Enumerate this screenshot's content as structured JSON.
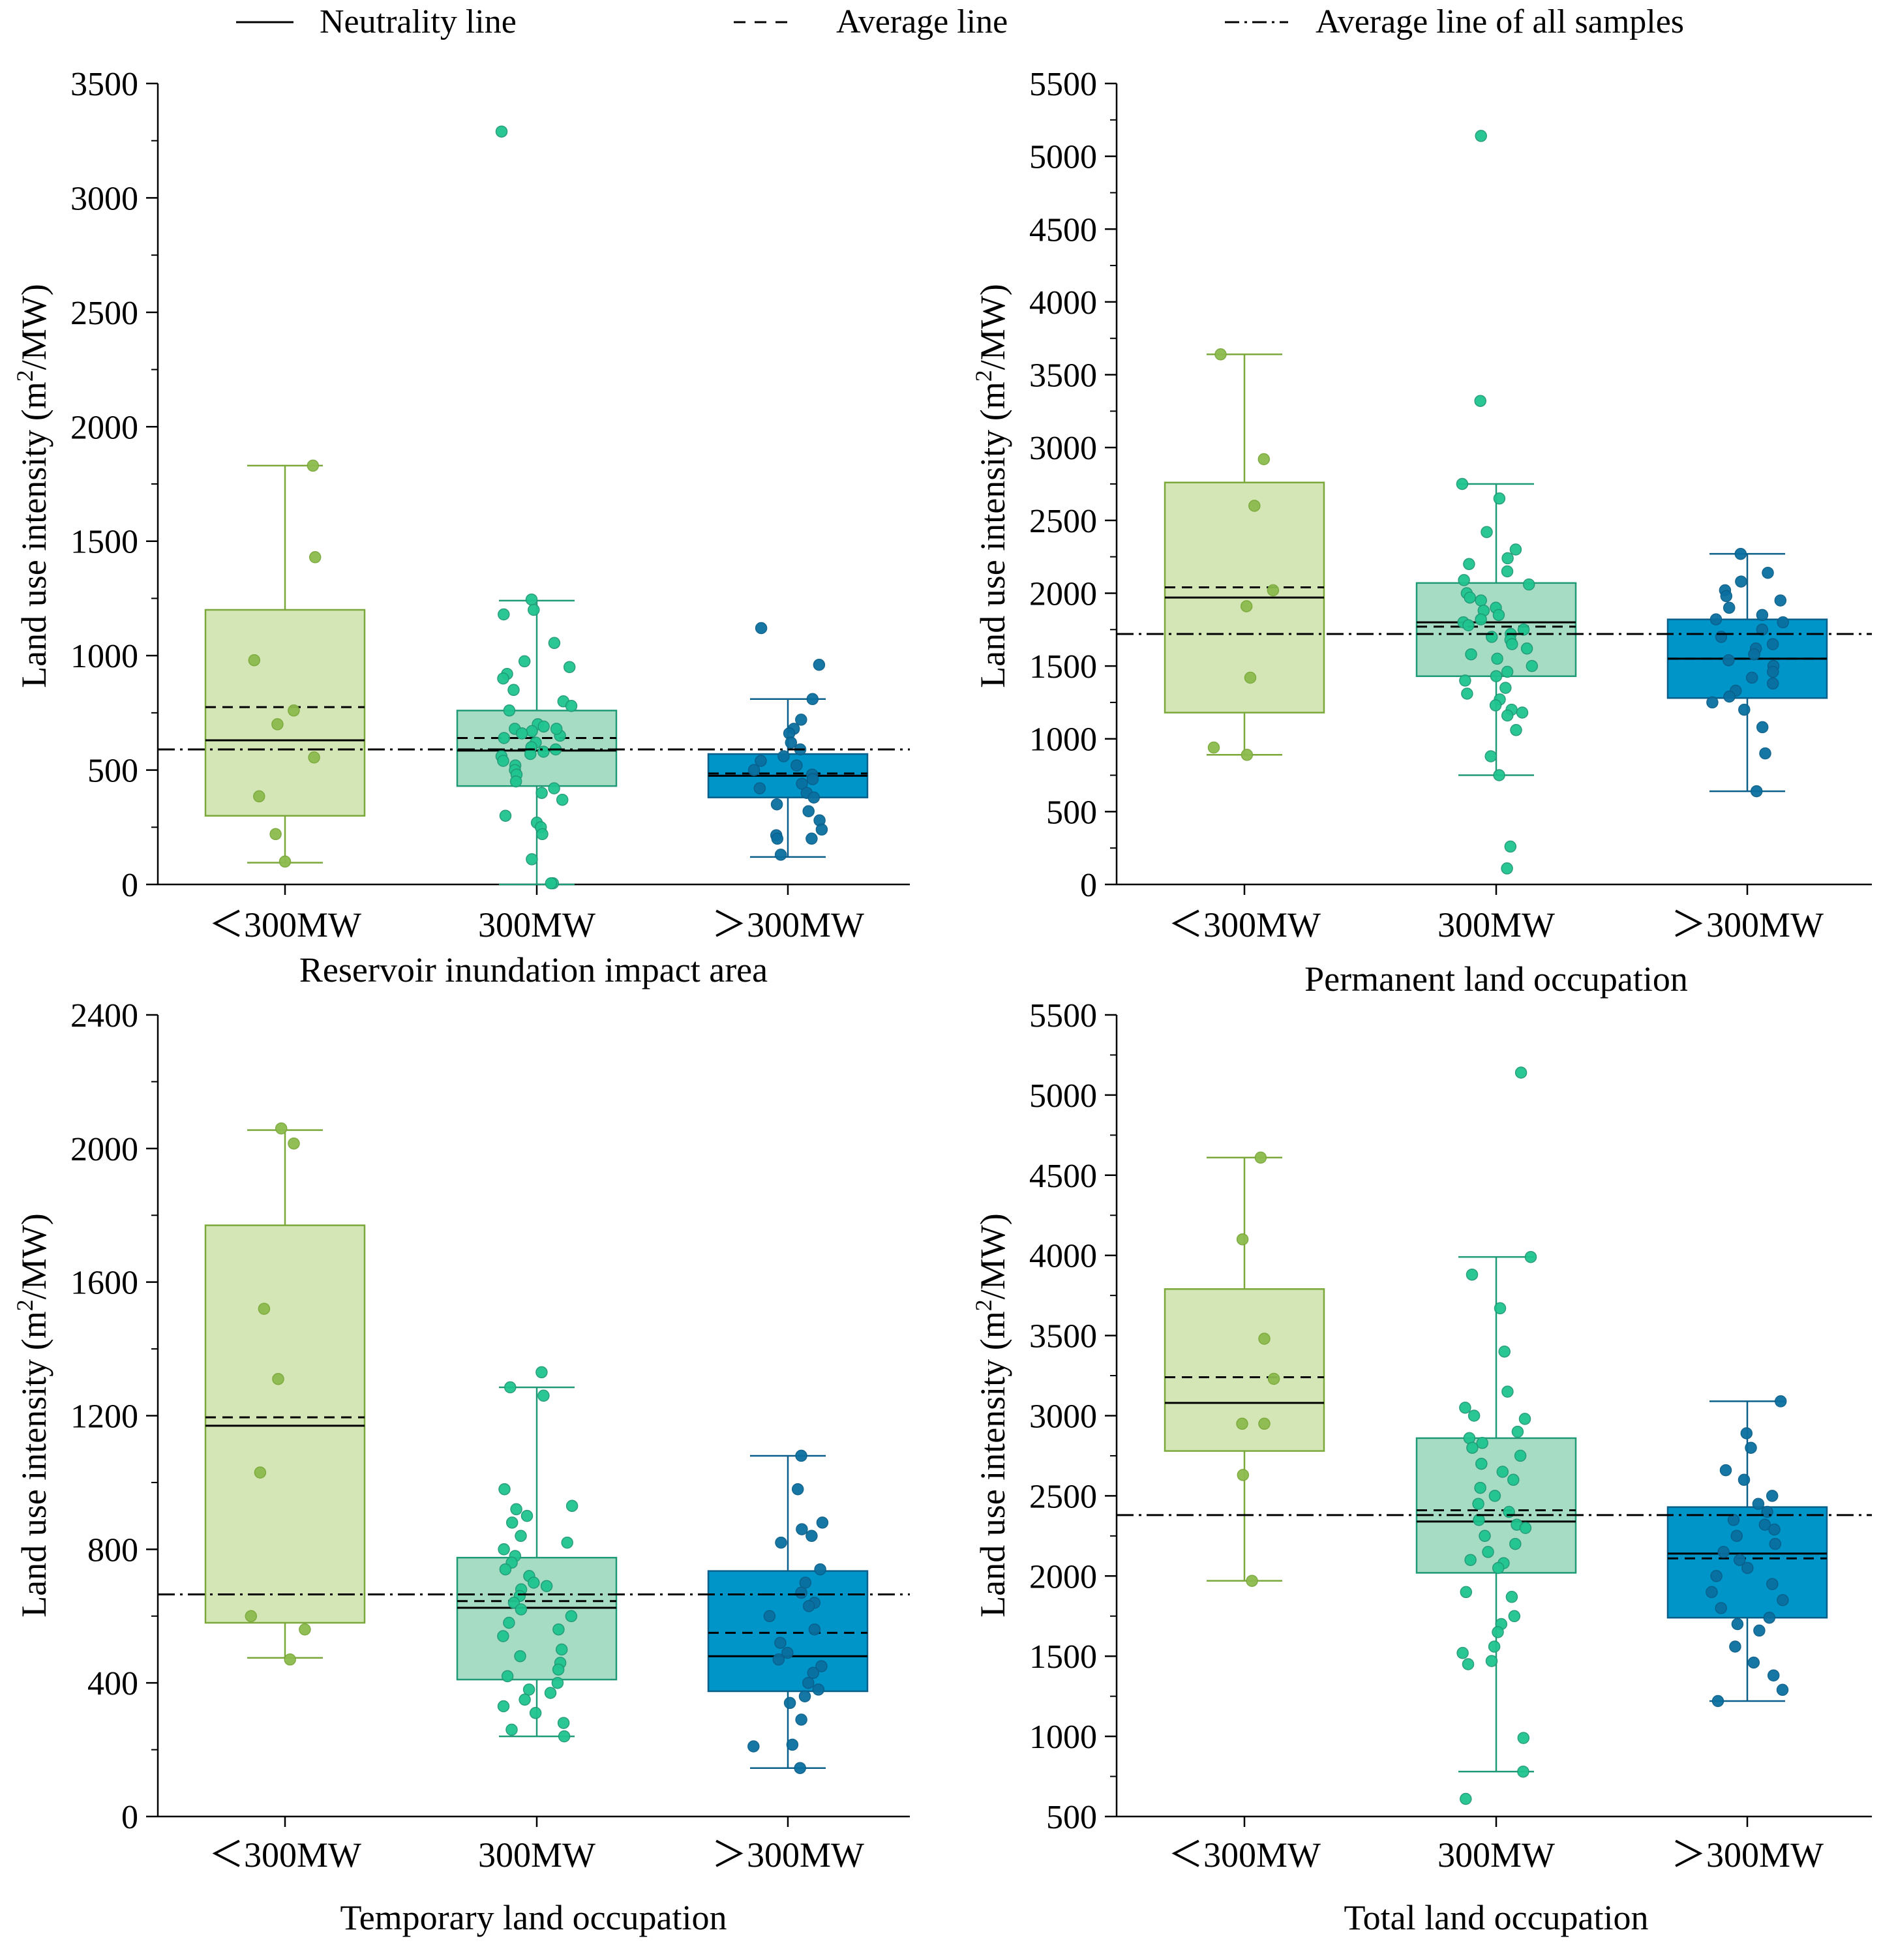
{
  "legend": {
    "neutrality": "Neutrality line",
    "average": "Average line",
    "average_all": "Average line of all samples"
  },
  "colors": {
    "small_fill": "#d4e6b5",
    "small_stroke": "#7aa83a",
    "small_point": "#8dbb4e",
    "mid_fill": "#a6dcc4",
    "mid_stroke": "#1f9a77",
    "mid_point": "#1fc48f",
    "large_fill": "#0095c8",
    "large_stroke": "#0a5f8a",
    "large_point": "#0a6fa0"
  },
  "chart_data": [
    {
      "type": "box",
      "title": "Reservoir inundation impact area",
      "ylabel_main": "Land use intensity (m",
      "ylabel_sup": "2",
      "ylabel_tail": "/MW)",
      "ylim": [
        0,
        3500
      ],
      "yticks": [
        0,
        500,
        1000,
        1500,
        2000,
        2500,
        3000,
        3500
      ],
      "overall_average": 590,
      "categories": [
        "<300MW",
        "300MW",
        ">300MW"
      ],
      "category_labels": [
        "＜300MW",
        "300MW",
        "＞300MW"
      ],
      "boxes": [
        {
          "q1": 300,
          "median": 630,
          "q3": 1200,
          "whisker_low": 95,
          "whisker_high": 1830,
          "mean": 775,
          "points": [
            1830,
            1430,
            980,
            700,
            555,
            385,
            220,
            100,
            760
          ]
        },
        {
          "q1": 430,
          "median": 585,
          "q3": 760,
          "whisker_low": 0,
          "whisker_high": 1240,
          "mean": 640,
          "points": [
            3290,
            1245,
            1200,
            1180,
            1055,
            975,
            950,
            920,
            900,
            850,
            800,
            780,
            760,
            700,
            690,
            680,
            670,
            660,
            650,
            640,
            620,
            600,
            590,
            580,
            570,
            560,
            540,
            520,
            500,
            480,
            450,
            420,
            400,
            370,
            300,
            270,
            250,
            220,
            110,
            5,
            5,
            680
          ]
        },
        {
          "q1": 380,
          "median": 475,
          "q3": 570,
          "whisker_low": 120,
          "whisker_high": 810,
          "mean": 485,
          "points": [
            1120,
            960,
            810,
            720,
            680,
            660,
            620,
            590,
            560,
            540,
            520,
            500,
            480,
            460,
            440,
            420,
            400,
            380,
            350,
            320,
            280,
            240,
            215,
            200,
            130,
            200
          ]
        }
      ]
    },
    {
      "type": "box",
      "title": "Permanent land occupation",
      "ylabel_main": "Land use intensity (m",
      "ylabel_sup": "2",
      "ylabel_tail": "/MW)",
      "ylim": [
        0,
        5500
      ],
      "yticks": [
        0,
        500,
        1000,
        1500,
        2000,
        2500,
        3000,
        3500,
        4000,
        4500,
        5000,
        5500
      ],
      "overall_average": 1720,
      "categories": [
        "<300MW",
        "300MW",
        ">300MW"
      ],
      "category_labels": [
        "＜300MW",
        "300MW",
        "＞300MW"
      ],
      "boxes": [
        {
          "q1": 1180,
          "median": 1970,
          "q3": 2760,
          "whisker_low": 890,
          "whisker_high": 3640,
          "mean": 2040,
          "points": [
            3640,
            2920,
            2600,
            2020,
            1910,
            1420,
            940,
            890
          ]
        },
        {
          "q1": 1430,
          "median": 1800,
          "q3": 2070,
          "whisker_low": 750,
          "whisker_high": 2750,
          "mean": 1770,
          "points": [
            5140,
            3320,
            2750,
            2650,
            2420,
            2300,
            2240,
            2200,
            2150,
            2090,
            2060,
            2000,
            1970,
            1950,
            1900,
            1880,
            1850,
            1820,
            1800,
            1780,
            1750,
            1720,
            1700,
            1680,
            1650,
            1620,
            1580,
            1550,
            1500,
            1460,
            1430,
            1400,
            1350,
            1310,
            1270,
            1230,
            1200,
            1180,
            1160,
            1060,
            880,
            750,
            260,
            110
          ]
        },
        {
          "q1": 1280,
          "median": 1550,
          "q3": 1820,
          "whisker_low": 640,
          "whisker_high": 2270,
          "mean": 1550,
          "points": [
            2270,
            2140,
            2080,
            2020,
            1980,
            1950,
            1900,
            1850,
            1820,
            1800,
            1750,
            1700,
            1650,
            1620,
            1580,
            1540,
            1500,
            1460,
            1420,
            1380,
            1330,
            1290,
            1250,
            1200,
            1080,
            900,
            640
          ]
        }
      ]
    },
    {
      "type": "box",
      "title": "Temporary land occupation",
      "ylabel_main": "Land use intensity (m",
      "ylabel_sup": "2",
      "ylabel_tail": "/MW)",
      "ylim": [
        0,
        2400
      ],
      "yticks": [
        0,
        400,
        800,
        1200,
        1600,
        2000,
        2400
      ],
      "overall_average": 665,
      "categories": [
        "<300MW",
        "300MW",
        ">300MW"
      ],
      "category_labels": [
        "＜300MW",
        "300MW",
        "＞300MW"
      ],
      "boxes": [
        {
          "q1": 580,
          "median": 1170,
          "q3": 1770,
          "whisker_low": 475,
          "whisker_high": 2055,
          "mean": 1195,
          "points": [
            2060,
            2015,
            1520,
            1310,
            1030,
            600,
            560,
            470
          ]
        },
        {
          "q1": 410,
          "median": 625,
          "q3": 775,
          "whisker_low": 240,
          "whisker_high": 1285,
          "mean": 645,
          "points": [
            1330,
            1285,
            1260,
            980,
            930,
            920,
            900,
            880,
            840,
            820,
            800,
            780,
            760,
            740,
            720,
            700,
            690,
            680,
            660,
            640,
            620,
            600,
            580,
            560,
            540,
            500,
            480,
            460,
            440,
            420,
            400,
            380,
            370,
            350,
            330,
            310,
            280,
            260,
            240
          ]
        },
        {
          "q1": 375,
          "median": 480,
          "q3": 735,
          "whisker_low": 145,
          "whisker_high": 1080,
          "mean": 550,
          "points": [
            1080,
            980,
            880,
            860,
            840,
            820,
            740,
            700,
            670,
            640,
            630,
            600,
            560,
            520,
            490,
            470,
            450,
            430,
            400,
            380,
            360,
            340,
            290,
            215,
            210,
            145
          ]
        }
      ]
    },
    {
      "type": "box",
      "title": "Total land occupation",
      "ylabel_main": "Land use intensity (m",
      "ylabel_sup": "2",
      "ylabel_tail": "/MW)",
      "ylim": [
        500,
        5500
      ],
      "yticks": [
        500,
        1000,
        1500,
        2000,
        2500,
        3000,
        3500,
        4000,
        4500,
        5000,
        5500
      ],
      "overall_average": 2380,
      "categories": [
        "<300MW",
        "300MW",
        ">300MW"
      ],
      "category_labels": [
        "＜300MW",
        "300MW",
        "＞300MW"
      ],
      "boxes": [
        {
          "q1": 2780,
          "median": 3080,
          "q3": 3790,
          "whisker_low": 1970,
          "whisker_high": 4610,
          "mean": 3240,
          "points": [
            4610,
            4100,
            3480,
            3230,
            2950,
            2950,
            2630,
            1970
          ]
        },
        {
          "q1": 2020,
          "median": 2340,
          "q3": 2860,
          "whisker_low": 780,
          "whisker_high": 3990,
          "mean": 2410,
          "points": [
            5140,
            3990,
            3880,
            3670,
            3400,
            3150,
            3050,
            3000,
            2980,
            2900,
            2860,
            2830,
            2800,
            2750,
            2700,
            2650,
            2600,
            2550,
            2500,
            2450,
            2400,
            2350,
            2320,
            2300,
            2250,
            2200,
            2150,
            2100,
            2080,
            2050,
            1900,
            1870,
            1750,
            1700,
            1650,
            1560,
            1520,
            1470,
            1450,
            990,
            780,
            610
          ]
        },
        {
          "q1": 1740,
          "median": 2140,
          "q3": 2430,
          "whisker_low": 1220,
          "whisker_high": 3090,
          "mean": 2110,
          "points": [
            3090,
            2890,
            2800,
            2660,
            2600,
            2500,
            2450,
            2400,
            2350,
            2320,
            2290,
            2250,
            2200,
            2150,
            2100,
            2050,
            2000,
            1950,
            1900,
            1850,
            1800,
            1740,
            1700,
            1660,
            1560,
            1460,
            1380,
            1290,
            1220
          ]
        }
      ]
    }
  ]
}
